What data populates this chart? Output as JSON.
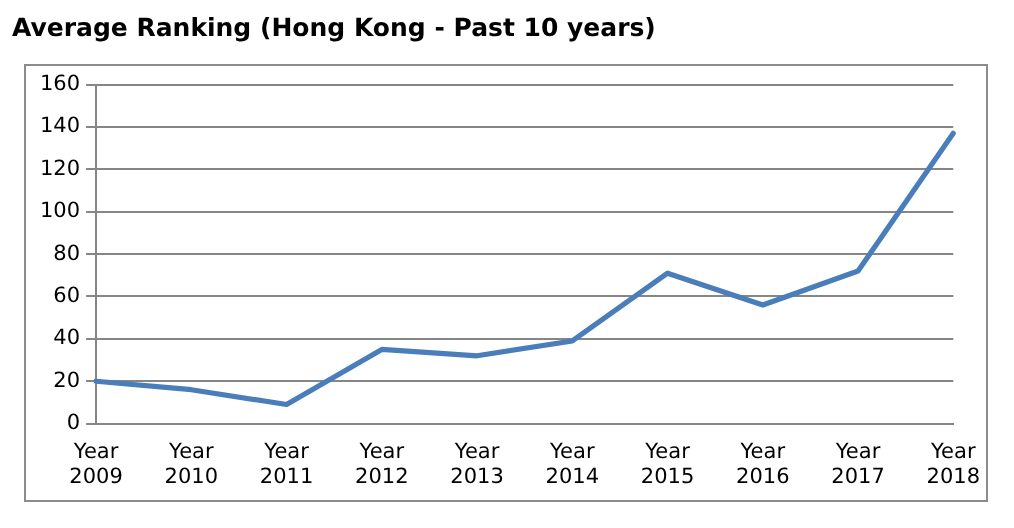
{
  "chart_data": {
    "type": "line",
    "title": "Average Ranking (Hong Kong - Past 10 years)",
    "categories": [
      "Year 2009",
      "Year 2010",
      "Year 2011",
      "Year 2012",
      "Year 2013",
      "Year 2014",
      "Year 2015",
      "Year 2016",
      "Year 2017",
      "Year 2018"
    ],
    "series": [
      {
        "color": "#4a7ebb",
        "values": [
          20,
          16,
          9,
          35,
          32,
          39,
          71,
          56,
          72,
          137
        ]
      }
    ],
    "ylim": [
      0,
      160
    ],
    "yticks": [
      0,
      20,
      40,
      60,
      80,
      100,
      120,
      140,
      160
    ],
    "grid": "y",
    "legend": false,
    "marker": "none",
    "line_style": "solid"
  }
}
